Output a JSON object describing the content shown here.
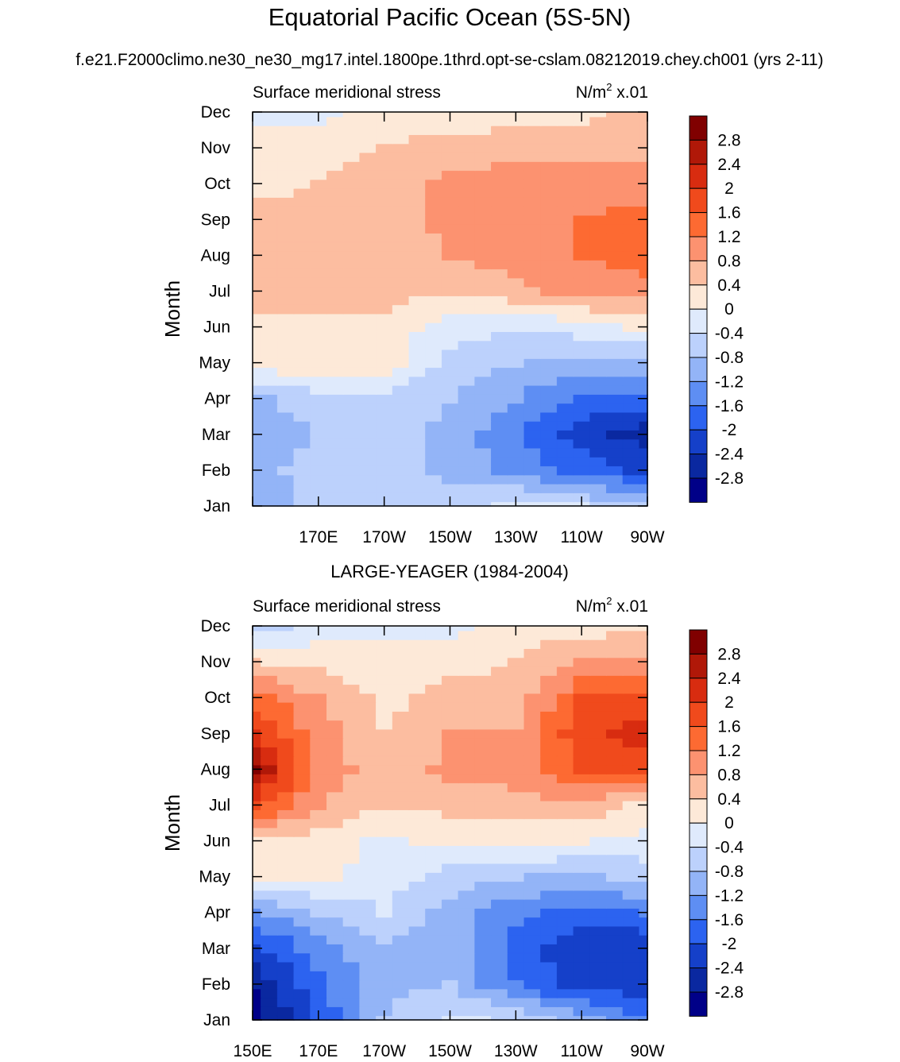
{
  "figure": {
    "title": "Equatorial Pacific Ocean (5S-5N)",
    "subtitle": "f.e21.F2000climo.ne30_ne30_mg17.intel.1800pe.1thrd.opt-se-cslam.08212019.chey.ch001 (yrs 2-11)"
  },
  "chart_data": [
    {
      "type": "heatmap",
      "panel_title": "",
      "variable_label": "Surface meridional stress",
      "units_label": "N/m",
      "units_power": "2",
      "units_scale": " x.01",
      "ylabel": "Month",
      "y_ticks": [
        "Jan",
        "Feb",
        "Mar",
        "Apr",
        "May",
        "Jun",
        "Jul",
        "Aug",
        "Sep",
        "Oct",
        "Nov",
        "Dec"
      ],
      "x_ticks": [
        "",
        "170E",
        "170W",
        "150W",
        "130W",
        "110W",
        "90W"
      ],
      "x_tick_values": [
        150,
        170,
        190,
        210,
        230,
        250,
        270
      ],
      "xlim": [
        150,
        270
      ],
      "grid_lon": [
        150,
        170,
        190,
        210,
        230,
        250,
        270
      ],
      "grid_month": [
        "Jan",
        "Feb",
        "Mar",
        "Apr",
        "May",
        "Jun",
        "Jul",
        "Aug",
        "Sep",
        "Oct",
        "Nov",
        "Dec"
      ],
      "values": [
        [
          -1.1,
          -0.7,
          -0.7,
          -0.6,
          -0.3,
          -0.4,
          -0.6
        ],
        [
          -1.0,
          -0.6,
          -0.7,
          -0.9,
          -1.3,
          -1.8,
          -2.1
        ],
        [
          -1.0,
          -0.8,
          -0.7,
          -0.9,
          -1.6,
          -2.2,
          -2.6
        ],
        [
          -0.9,
          -0.6,
          -0.5,
          -0.8,
          -1.2,
          -1.7,
          -1.8
        ],
        [
          0.2,
          0.3,
          0.2,
          -0.6,
          -0.8,
          -1.0,
          -1.0
        ],
        [
          0.3,
          0.3,
          0.3,
          -0.2,
          -0.4,
          -0.2,
          0.1
        ],
        [
          0.6,
          0.5,
          0.5,
          0.5,
          0.7,
          0.9,
          1.0
        ],
        [
          0.7,
          0.6,
          0.6,
          0.8,
          1.0,
          1.2,
          1.4
        ],
        [
          0.5,
          0.5,
          0.6,
          0.9,
          1.1,
          1.2,
          1.3
        ],
        [
          0.3,
          0.4,
          0.6,
          0.9,
          1.0,
          1.1,
          1.0
        ],
        [
          0.2,
          0.3,
          0.4,
          0.6,
          0.7,
          0.6,
          0.6
        ],
        [
          -0.2,
          -0.1,
          0.1,
          0.1,
          0.2,
          0.3,
          0.5
        ]
      ]
    },
    {
      "type": "heatmap",
      "panel_title": "LARGE-YEAGER (1984-2004)",
      "variable_label": "Surface meridional stress",
      "units_label": "N/m",
      "units_power": "2",
      "units_scale": " x.01",
      "ylabel": "Month",
      "y_ticks": [
        "Jan",
        "Feb",
        "Mar",
        "Apr",
        "May",
        "Jun",
        "Jul",
        "Aug",
        "Sep",
        "Oct",
        "Nov",
        "Dec"
      ],
      "x_ticks": [
        "150E",
        "170E",
        "170W",
        "150W",
        "130W",
        "110W",
        "90W"
      ],
      "x_tick_values": [
        150,
        170,
        190,
        210,
        230,
        250,
        270
      ],
      "xlim": [
        150,
        270
      ],
      "grid_lon": [
        150,
        170,
        190,
        210,
        230,
        250,
        270
      ],
      "grid_month": [
        "Jan",
        "Feb",
        "Mar",
        "Apr",
        "May",
        "Jun",
        "Jul",
        "Aug",
        "Sep",
        "Oct",
        "Nov",
        "Dec"
      ],
      "values": [
        [
          -3.0,
          -2.0,
          -0.8,
          -0.3,
          -0.5,
          -1.0,
          -1.6
        ],
        [
          -2.8,
          -1.7,
          -0.9,
          -0.8,
          -1.6,
          -2.2,
          -2.2
        ],
        [
          -2.2,
          -1.4,
          -0.9,
          -1.0,
          -1.8,
          -2.4,
          -2.4
        ],
        [
          -1.3,
          -0.8,
          -0.4,
          -1.0,
          -1.5,
          -1.8,
          -1.6
        ],
        [
          0.1,
          0.1,
          -0.2,
          -0.6,
          -0.8,
          -0.9,
          -0.7
        ],
        [
          0.3,
          0.2,
          -0.1,
          0.1,
          0.1,
          0.0,
          -0.1
        ],
        [
          1.8,
          0.8,
          0.4,
          0.5,
          0.6,
          0.7,
          0.3
        ],
        [
          2.9,
          1.0,
          0.6,
          0.9,
          1.0,
          1.6,
          1.7
        ],
        [
          2.0,
          1.0,
          0.4,
          0.8,
          0.8,
          1.9,
          2.2
        ],
        [
          1.4,
          0.8,
          0.3,
          0.5,
          0.6,
          1.6,
          1.7
        ],
        [
          0.4,
          0.3,
          0.1,
          0.3,
          0.4,
          0.8,
          0.9
        ],
        [
          -0.6,
          -0.3,
          -0.1,
          -0.1,
          0.2,
          0.2,
          0.3
        ]
      ]
    }
  ],
  "colorbar": {
    "labels": [
      "2.8",
      "2.4",
      "2",
      "1.6",
      "1.2",
      "0.8",
      "0.4",
      "0",
      "-0.4",
      "-0.8",
      "-1.2",
      "-1.6",
      "-2",
      "-2.4",
      "-2.8"
    ],
    "levels": [
      2.8,
      2.4,
      2,
      1.6,
      1.2,
      0.8,
      0.4,
      0,
      -0.4,
      -0.8,
      -1.2,
      -1.6,
      -2,
      -2.4,
      -2.8
    ],
    "colors": [
      "#800000",
      "#b01808",
      "#d82c10",
      "#f04a1c",
      "#fd6a32",
      "#fc9270",
      "#fcbda0",
      "#fde9d8",
      "#dfeafc",
      "#bcd1fc",
      "#93b4f7",
      "#5e8ef3",
      "#2c63f0",
      "#1540c9",
      "#0a28a0",
      "#000088"
    ]
  }
}
